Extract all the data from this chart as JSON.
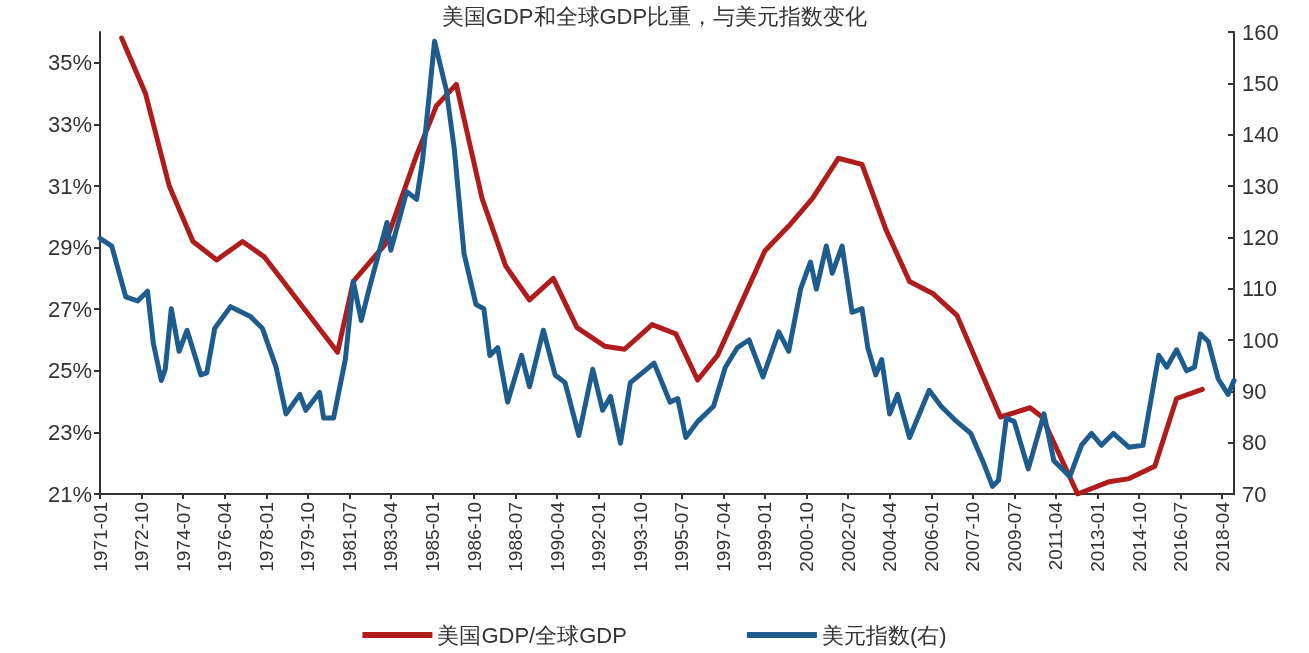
{
  "chart_data": {
    "type": "line",
    "title": "美国GDP和全球GDP比重，与美元指数变化",
    "xlim": [
      "1971-01",
      "2018-10"
    ],
    "xticks": [
      "1971-01",
      "1972-10",
      "1974-07",
      "1976-04",
      "1978-01",
      "1979-10",
      "1981-07",
      "1983-04",
      "1985-01",
      "1986-10",
      "1988-07",
      "1990-04",
      "1992-01",
      "1993-10",
      "1995-07",
      "1997-04",
      "1999-01",
      "2000-10",
      "2002-07",
      "2004-04",
      "2006-01",
      "2007-10",
      "2009-07",
      "2011-04",
      "2013-01",
      "2014-10",
      "2016-07",
      "2018-04"
    ],
    "ylim": [
      21,
      36
    ],
    "yticks": [
      {
        "value": 21,
        "label": "21%"
      },
      {
        "value": 23,
        "label": "23%"
      },
      {
        "value": 25,
        "label": "25%"
      },
      {
        "value": 27,
        "label": "27%"
      },
      {
        "value": 29,
        "label": "29%"
      },
      {
        "value": 31,
        "label": "31%"
      },
      {
        "value": 33,
        "label": "33%"
      },
      {
        "value": 35,
        "label": "35%"
      }
    ],
    "y2lim": [
      70,
      160
    ],
    "y2ticks": [
      70,
      80,
      90,
      100,
      110,
      120,
      130,
      140,
      150,
      160
    ],
    "grid": false,
    "legend": "bottom",
    "marker": "none",
    "line_style": "solid",
    "series": [
      {
        "name": "美国GDP/全球GDP",
        "color": "#b01c1c",
        "x": [
          "1971-12",
          "1972-12",
          "1973-12",
          "1974-12",
          "1975-12",
          "1977-01",
          "1977-12",
          "1981-01",
          "1981-09",
          "1983-01",
          "1984-05",
          "1985-03",
          "1986-01",
          "1987-02",
          "1988-02",
          "1989-02",
          "1990-02",
          "1991-02",
          "1992-04",
          "1993-02",
          "1994-04",
          "1995-04",
          "1996-03",
          "1997-01",
          "1999-01",
          "2000-01",
          "2001-01",
          "2002-02",
          "2003-02",
          "2004-02",
          "2005-02",
          "2006-02",
          "2007-02",
          "2008-12",
          "2010-03",
          "2010-09",
          "2012-03",
          "2013-07",
          "2014-05",
          "2015-06",
          "2016-05",
          "2017-06"
        ],
        "values": [
          35.8,
          34.0,
          31.0,
          29.2,
          28.6,
          29.2,
          28.7,
          25.6,
          27.9,
          29.1,
          32.0,
          33.6,
          34.3,
          30.6,
          28.4,
          27.3,
          28.0,
          26.4,
          25.8,
          25.7,
          26.5,
          26.2,
          24.7,
          25.5,
          28.9,
          29.7,
          30.6,
          31.9,
          31.7,
          29.6,
          27.9,
          27.5,
          26.8,
          23.5,
          23.8,
          23.5,
          21.0,
          21.4,
          21.5,
          21.9,
          24.1,
          24.4
        ]
      },
      {
        "name": "美元指数(右)",
        "color": "#1f5c8e",
        "axis": "y2",
        "x": [
          "1971-01",
          "1971-07",
          "1972-02",
          "1972-08",
          "1973-01",
          "1973-04",
          "1973-08",
          "1973-10",
          "1974-01",
          "1974-05",
          "1974-09",
          "1975-04",
          "1975-07",
          "1975-11",
          "1976-07",
          "1977-05",
          "1977-11",
          "1978-06",
          "1978-11",
          "1979-06",
          "1979-09",
          "1980-04",
          "1980-06",
          "1980-11",
          "1981-05",
          "1981-09",
          "1982-01",
          "1982-05",
          "1983-02",
          "1983-04",
          "1983-12",
          "1984-05",
          "1984-08",
          "1984-11",
          "1985-02",
          "1985-08",
          "1985-12",
          "1986-05",
          "1986-11",
          "1987-03",
          "1987-06",
          "1987-10",
          "1988-03",
          "1988-10",
          "1989-02",
          "1989-09",
          "1990-03",
          "1990-08",
          "1991-03",
          "1991-10",
          "1992-03",
          "1992-07",
          "1992-12",
          "1993-05",
          "1993-11",
          "1994-05",
          "1995-01",
          "1995-05",
          "1995-09",
          "1996-03",
          "1996-11",
          "1997-05",
          "1997-11",
          "1998-05",
          "1998-12",
          "1999-08",
          "2000-01",
          "2000-07",
          "2000-12",
          "2001-03",
          "2001-08",
          "2001-11",
          "2002-04",
          "2002-09",
          "2003-02",
          "2003-05",
          "2003-09",
          "2003-12",
          "2004-04",
          "2004-08",
          "2005-02",
          "2005-12",
          "2006-06",
          "2007-01",
          "2007-09",
          "2008-03",
          "2008-08",
          "2008-11",
          "2009-03",
          "2009-07",
          "2010-02",
          "2010-10",
          "2011-03",
          "2011-11",
          "2012-05",
          "2012-10",
          "2013-03",
          "2013-09",
          "2014-05",
          "2014-12",
          "2015-08",
          "2015-12",
          "2016-05",
          "2016-10",
          "2017-02",
          "2017-05",
          "2017-09",
          "2018-02",
          "2018-07",
          "2018-10"
        ],
        "values": [
          119.8,
          118.3,
          108.4,
          107.6,
          109.5,
          99.3,
          92.1,
          94.3,
          106.1,
          97.8,
          101.9,
          93.2,
          93.6,
          102.3,
          106.5,
          104.6,
          102.3,
          94.7,
          85.6,
          89.4,
          86.3,
          89.8,
          84.8,
          84.8,
          96.2,
          111.4,
          103.8,
          109.9,
          122.9,
          117.5,
          128.9,
          127.4,
          135.0,
          146.4,
          158.2,
          148.7,
          137.3,
          116.8,
          106.9,
          106.1,
          97.0,
          98.5,
          87.9,
          97.0,
          90.9,
          101.9,
          93.2,
          91.7,
          81.4,
          94.3,
          86.3,
          89.0,
          79.9,
          91.7,
          93.6,
          95.5,
          87.9,
          88.6,
          81.0,
          84.1,
          87.1,
          94.7,
          98.5,
          100.0,
          92.8,
          101.6,
          97.8,
          109.9,
          115.2,
          109.9,
          118.3,
          113.0,
          118.3,
          105.4,
          106.1,
          98.5,
          93.2,
          96.2,
          85.6,
          89.4,
          81.0,
          90.2,
          87.1,
          84.4,
          81.8,
          76.5,
          71.5,
          72.7,
          84.8,
          84.1,
          74.9,
          85.6,
          76.5,
          73.4,
          79.5,
          81.8,
          79.5,
          81.8,
          79.1,
          79.5,
          97.0,
          94.7,
          98.1,
          94.0,
          94.7,
          101.2,
          99.7,
          92.4,
          89.4,
          92.1
        ]
      }
    ]
  }
}
